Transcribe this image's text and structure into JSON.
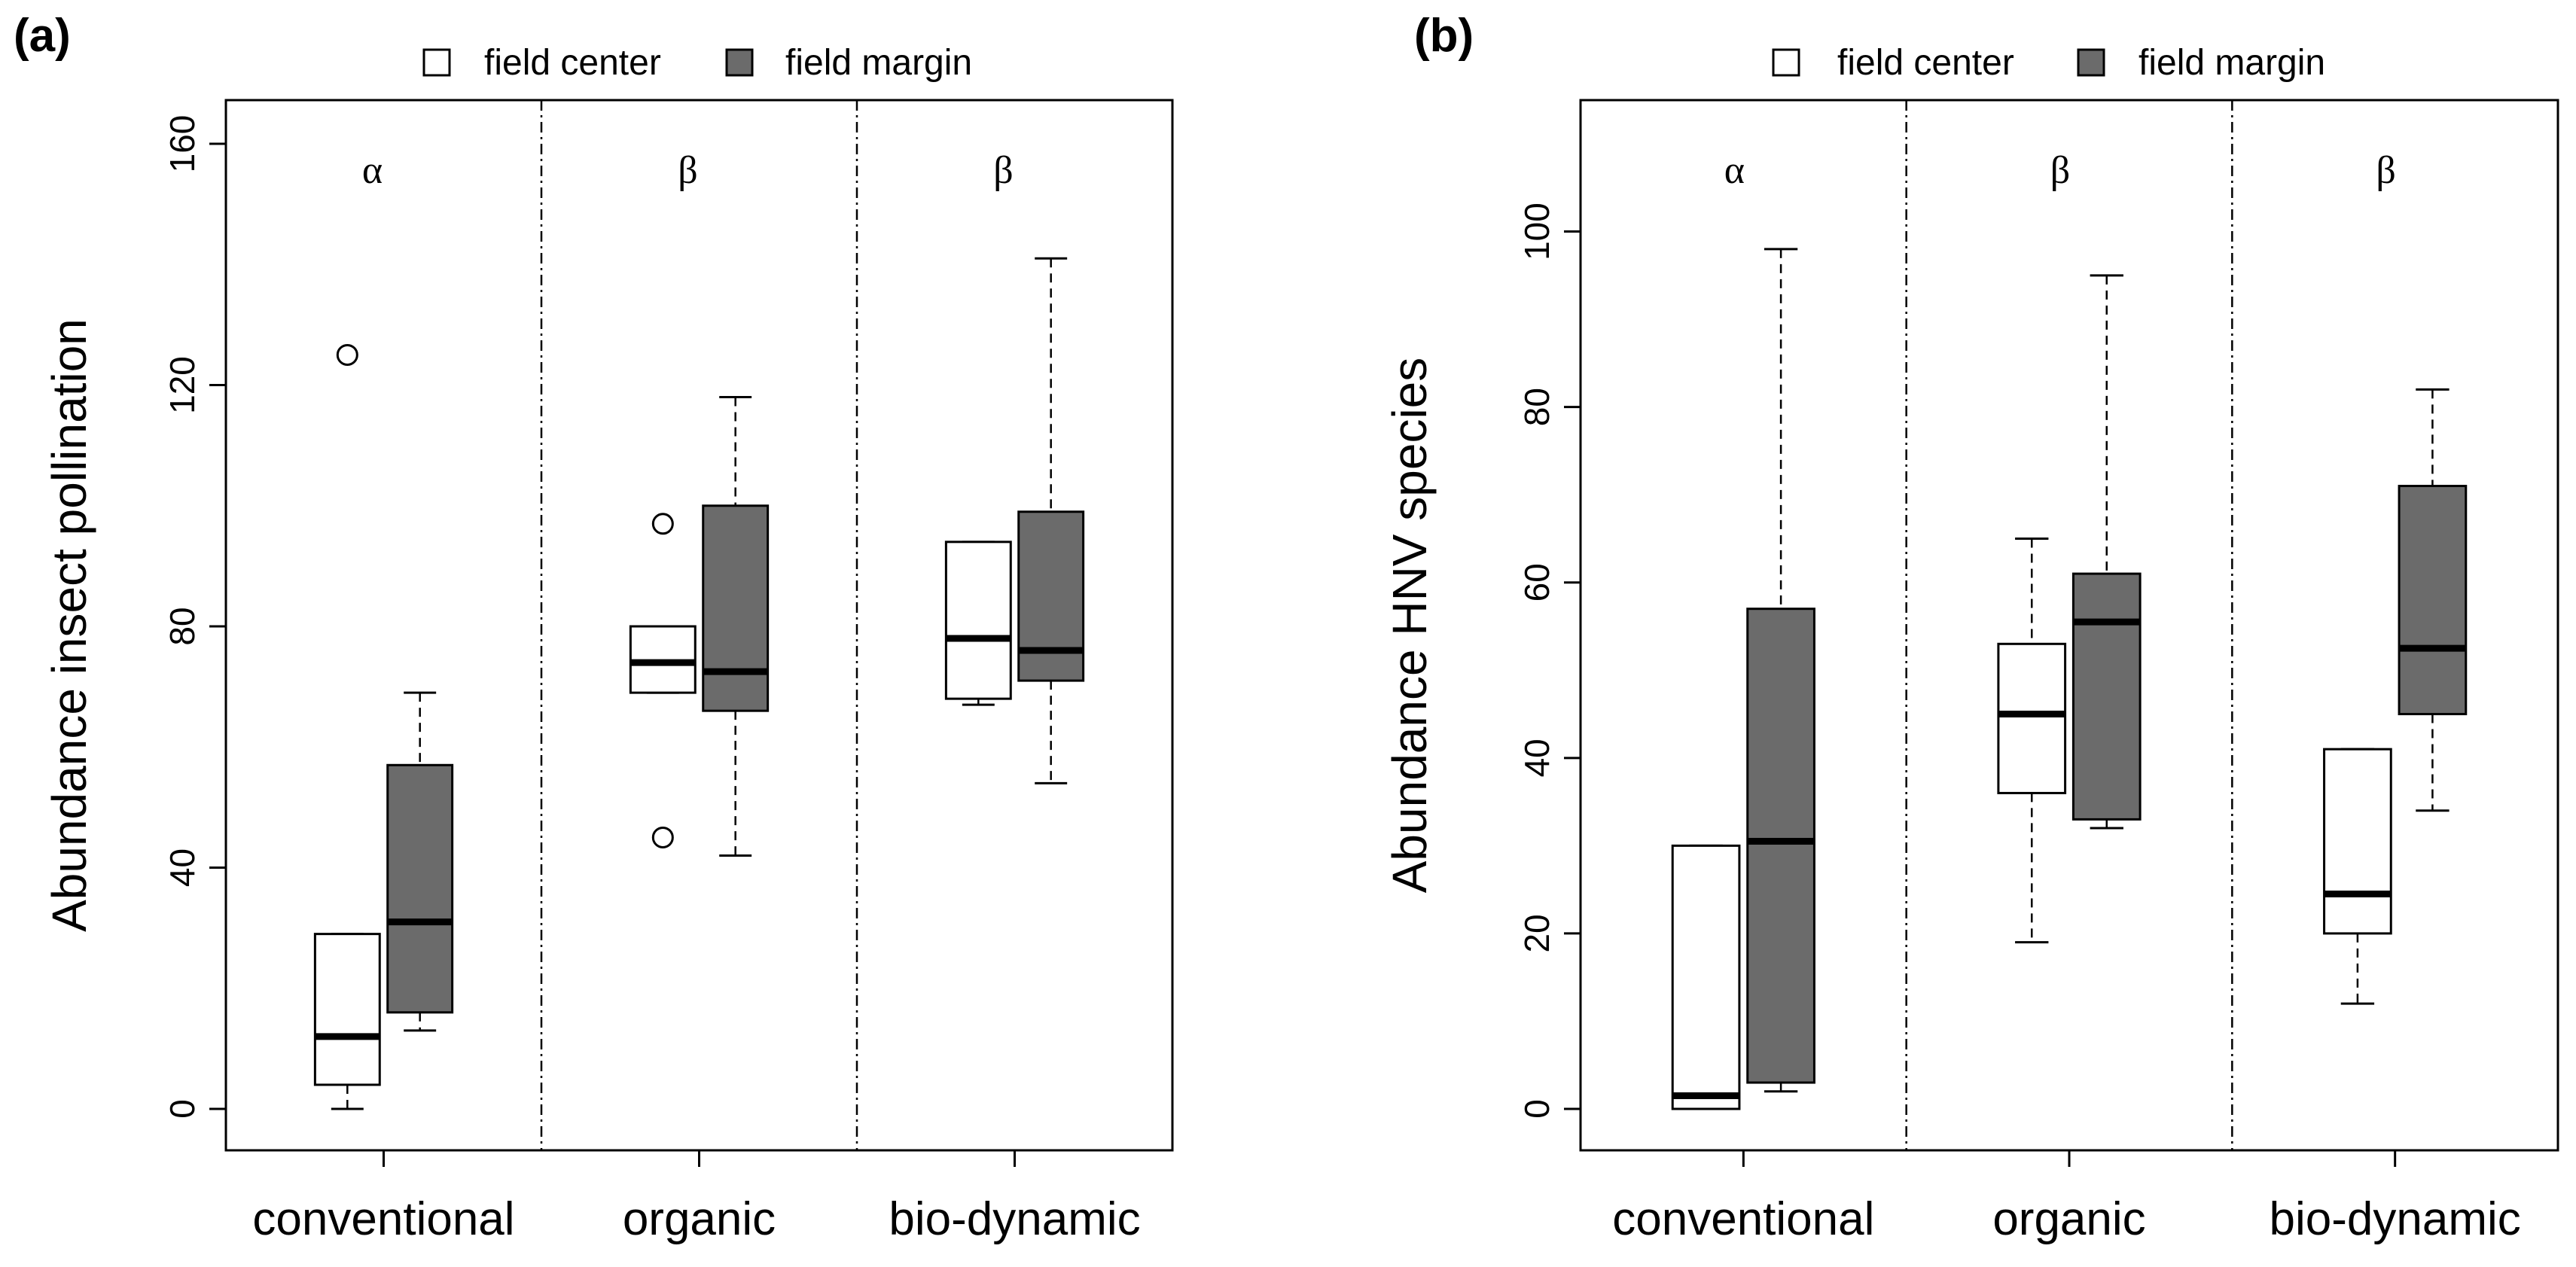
{
  "chart_data": [
    {
      "panel_label": "(a)",
      "type": "boxplot",
      "ylabel": "Abundance insect pollination",
      "ylim": [
        0,
        160
      ],
      "yticks": [
        0,
        40,
        80,
        120,
        160
      ],
      "categories": [
        "conventional",
        "organic",
        "bio-dynamic"
      ],
      "significance": [
        "α",
        "β",
        "β"
      ],
      "legend": [
        {
          "label": "field center",
          "color": "#ffffff"
        },
        {
          "label": "field margin",
          "color": "#6b6b6b"
        }
      ],
      "legend_position": "top-center",
      "groups": [
        {
          "category": "conventional",
          "field_center": {
            "lower_whisker": 0,
            "q1": 4,
            "median": 12,
            "q3": 29,
            "upper_whisker": 29,
            "outliers": [
              125
            ]
          },
          "field_margin": {
            "lower_whisker": 13,
            "q1": 16,
            "median": 31,
            "q3": 57,
            "upper_whisker": 69,
            "outliers": []
          }
        },
        {
          "category": "organic",
          "field_center": {
            "lower_whisker": 69,
            "q1": 69,
            "median": 74,
            "q3": 80,
            "upper_whisker": 80,
            "outliers": [
              97,
              45
            ]
          },
          "field_margin": {
            "lower_whisker": 42,
            "q1": 66,
            "median": 72.5,
            "q3": 100,
            "upper_whisker": 118,
            "outliers": []
          }
        },
        {
          "category": "bio-dynamic",
          "field_center": {
            "lower_whisker": 67,
            "q1": 68,
            "median": 78,
            "q3": 94,
            "upper_whisker": 94,
            "outliers": []
          },
          "field_margin": {
            "lower_whisker": 54,
            "q1": 71,
            "median": 76,
            "q3": 99,
            "upper_whisker": 141,
            "outliers": []
          }
        }
      ]
    },
    {
      "panel_label": "(b)",
      "type": "boxplot",
      "ylabel": "Abundance HNV species",
      "ylim": [
        0,
        100
      ],
      "yticks": [
        0,
        20,
        40,
        60,
        80,
        100
      ],
      "categories": [
        "conventional",
        "organic",
        "bio-dynamic"
      ],
      "significance": [
        "α",
        "β",
        "β"
      ],
      "legend": [
        {
          "label": "field center",
          "color": "#ffffff"
        },
        {
          "label": "field margin",
          "color": "#6b6b6b"
        }
      ],
      "legend_position": "top-center",
      "groups": [
        {
          "category": "conventional",
          "field_center": {
            "lower_whisker": 0,
            "q1": 0,
            "median": 1.5,
            "q3": 30,
            "upper_whisker": 30,
            "outliers": []
          },
          "field_margin": {
            "lower_whisker": 2,
            "q1": 3,
            "median": 30.5,
            "q3": 57,
            "upper_whisker": 98,
            "outliers": []
          }
        },
        {
          "category": "organic",
          "field_center": {
            "lower_whisker": 19,
            "q1": 36,
            "median": 45,
            "q3": 53,
            "upper_whisker": 65,
            "outliers": []
          },
          "field_margin": {
            "lower_whisker": 32,
            "q1": 33,
            "median": 55.5,
            "q3": 61,
            "upper_whisker": 95,
            "outliers": []
          }
        },
        {
          "category": "bio-dynamic",
          "field_center": {
            "lower_whisker": 12,
            "q1": 20,
            "median": 24.5,
            "q3": 41,
            "upper_whisker": 41,
            "outliers": []
          },
          "field_margin": {
            "lower_whisker": 34,
            "q1": 45,
            "median": 52.5,
            "q3": 71,
            "upper_whisker": 82,
            "outliers": []
          }
        }
      ]
    }
  ]
}
